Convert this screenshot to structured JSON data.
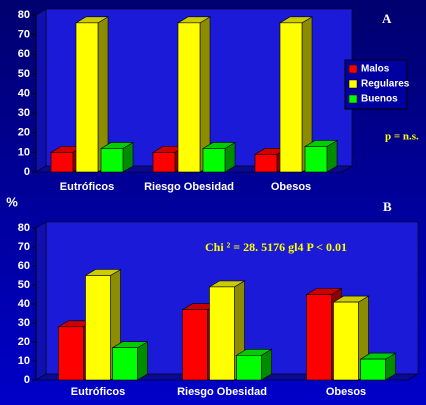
{
  "chart_data": [
    {
      "type": "bar3d",
      "categories": [
        "Eutróficos",
        "Riesgo Obesidad",
        "Obesos"
      ],
      "series": [
        {
          "name": "Malos",
          "color": "#ff0000",
          "values": [
            10,
            10,
            9
          ]
        },
        {
          "name": "Regulares",
          "color": "#ffff00",
          "values": [
            76,
            76,
            76
          ]
        },
        {
          "name": "Buenos",
          "color": "#00ff00",
          "values": [
            12,
            12,
            13
          ]
        }
      ],
      "ylim": [
        0,
        80
      ],
      "yticks": [
        0,
        10,
        20,
        30,
        40,
        50,
        60,
        70,
        80
      ],
      "grid": false,
      "legend": "right",
      "annotations": [
        "A",
        "p = n.s."
      ]
    },
    {
      "type": "bar3d",
      "categories": [
        "Eutróficos",
        "Riesgo Obesidad",
        "Obesos"
      ],
      "series": [
        {
          "color": "#ff0000",
          "values": [
            28,
            37,
            45
          ]
        },
        {
          "color": "#ffff00",
          "values": [
            55,
            49,
            41
          ]
        },
        {
          "color": "#00ff00",
          "values": [
            17,
            13,
            11
          ]
        }
      ],
      "ylim": [
        0,
        80
      ],
      "yticks": [
        0,
        10,
        20,
        30,
        40,
        50,
        60,
        70,
        80
      ],
      "grid": false,
      "y_label": "%",
      "annotations": [
        "B",
        "Chi ² =  28. 5176   gl4     P < 0.01"
      ]
    }
  ]
}
